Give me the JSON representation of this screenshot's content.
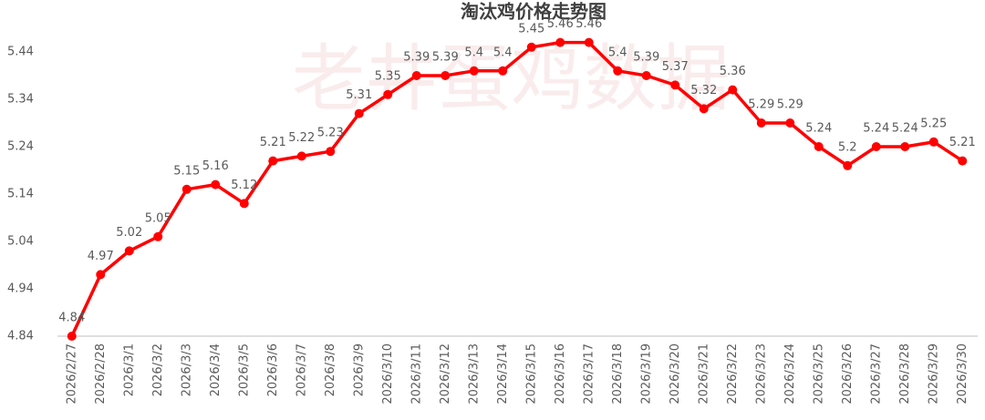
{
  "chart_data": {
    "type": "line",
    "title": "淘汰鸡价格走势图",
    "watermark": "老井蛋鸡数据",
    "categories": [
      "2026/2/27",
      "2026/2/28",
      "2026/3/1",
      "2026/3/2",
      "2026/3/3",
      "2026/3/4",
      "2026/3/5",
      "2026/3/6",
      "2026/3/7",
      "2026/3/8",
      "2026/3/9",
      "2026/3/10",
      "2026/3/11",
      "2026/3/12",
      "2026/3/13",
      "2026/3/14",
      "2026/3/15",
      "2026/3/16",
      "2026/3/17",
      "2026/3/18",
      "2026/3/19",
      "2026/3/20",
      "2026/3/21",
      "2026/3/22",
      "2026/3/23",
      "2026/3/24",
      "2026/3/25",
      "2026/3/26",
      "2026/3/27",
      "2026/3/28",
      "2026/3/29",
      "2026/3/30"
    ],
    "values": [
      4.84,
      4.97,
      5.02,
      5.05,
      5.15,
      5.16,
      5.12,
      5.21,
      5.22,
      5.23,
      5.31,
      5.35,
      5.39,
      5.39,
      5.4,
      5.4,
      5.45,
      5.46,
      5.46,
      5.4,
      5.39,
      5.37,
      5.32,
      5.36,
      5.29,
      5.29,
      5.24,
      5.2,
      5.24,
      5.24,
      5.25,
      5.21
    ],
    "color": "#ff0000",
    "ylim": [
      4.84,
      5.54
    ],
    "yticks": [
      4.84,
      4.94,
      5.04,
      5.14,
      5.24,
      5.34,
      5.44
    ],
    "grid": false
  }
}
